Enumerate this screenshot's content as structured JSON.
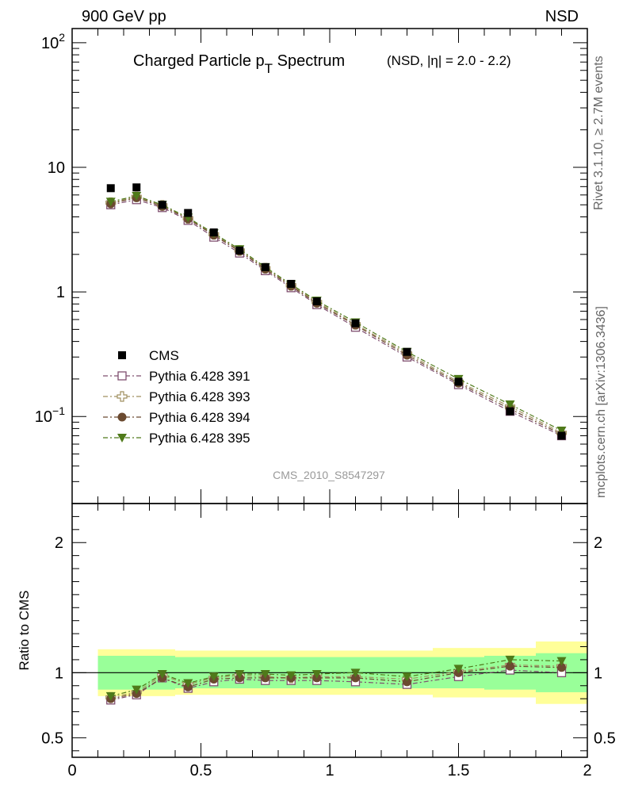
{
  "header": {
    "left": "900 GeV pp",
    "right": "NSD"
  },
  "side_labels": {
    "rivet": "Rivet 3.1.10, ≥ 2.7M events",
    "mcplots": "mcplots.cern.ch [arXiv:1306.3436]"
  },
  "chart_data": {
    "type": "scatter",
    "title": "Charged Particle p",
    "title_sub": "T",
    "title_word": " Spectrum",
    "title_extra": "(NSD, |η| = 2.0 - 2.2)",
    "analysis_label": "CMS_2010_S8547297",
    "xlim": [
      0,
      2
    ],
    "main_panel": {
      "yscale": "log",
      "ylim": [
        0.02,
        130
      ],
      "ytick_values": [
        0.1,
        1,
        10,
        100
      ],
      "ytick_labels": [
        {
          "base": "10",
          "exp": "−1"
        },
        {
          "base": "1",
          "exp": ""
        },
        {
          "base": "10",
          "exp": ""
        },
        {
          "base": "10",
          "exp": "2"
        }
      ]
    },
    "ratio_panel": {
      "ylabel": "Ratio to CMS",
      "ylim": [
        0.35,
        2.3
      ],
      "ytick_values": [
        0.5,
        1,
        2
      ],
      "ytick_labels": [
        "0.5",
        "1",
        "2"
      ]
    },
    "xtick_values": [
      0,
      0.5,
      1,
      1.5,
      2
    ],
    "xtick_labels": [
      "0",
      "0.5",
      "1",
      "1.5",
      "2"
    ],
    "bins": [
      [
        0.1,
        0.2
      ],
      [
        0.2,
        0.3
      ],
      [
        0.3,
        0.4
      ],
      [
        0.4,
        0.5
      ],
      [
        0.5,
        0.6
      ],
      [
        0.6,
        0.7
      ],
      [
        0.7,
        0.8
      ],
      [
        0.8,
        0.9
      ],
      [
        0.9,
        1.0
      ],
      [
        1.0,
        1.2
      ],
      [
        1.2,
        1.4
      ],
      [
        1.4,
        1.6
      ],
      [
        1.6,
        1.8
      ],
      [
        1.8,
        2.0
      ]
    ],
    "x": [
      0.15,
      0.25,
      0.35,
      0.45,
      0.55,
      0.65,
      0.75,
      0.85,
      0.95,
      1.1,
      1.3,
      1.5,
      1.7,
      1.9
    ],
    "data": {
      "name": "CMS",
      "y": [
        6.8,
        6.9,
        5.0,
        4.3,
        3.0,
        2.15,
        1.58,
        1.16,
        0.84,
        0.56,
        0.33,
        0.19,
        0.11,
        0.07
      ],
      "ratio_band_inner": [
        0.13,
        0.13,
        0.13,
        0.12,
        0.12,
        0.12,
        0.12,
        0.12,
        0.12,
        0.12,
        0.12,
        0.12,
        0.13,
        0.15
      ],
      "ratio_band_outer": [
        0.18,
        0.18,
        0.18,
        0.17,
        0.17,
        0.17,
        0.17,
        0.17,
        0.17,
        0.17,
        0.17,
        0.19,
        0.19,
        0.24
      ]
    },
    "series": [
      {
        "name": "Pythia 6.428 391",
        "color": "#7f4f6f",
        "marker": "open-square",
        "y": [
          5.0,
          5.5,
          4.75,
          3.75,
          2.75,
          2.05,
          1.48,
          1.08,
          0.79,
          0.52,
          0.3,
          0.18,
          0.11,
          0.07
        ],
        "ratio": [
          0.79,
          0.83,
          0.96,
          0.88,
          0.93,
          0.95,
          0.94,
          0.94,
          0.94,
          0.93,
          0.91,
          0.97,
          1.02,
          1.0
        ]
      },
      {
        "name": "Pythia 6.428 393",
        "color": "#a09060",
        "marker": "open-cross",
        "y": [
          5.2,
          5.8,
          4.95,
          3.9,
          2.9,
          2.15,
          1.55,
          1.13,
          0.83,
          0.55,
          0.32,
          0.19,
          0.12,
          0.074
        ],
        "ratio": [
          0.81,
          0.85,
          0.98,
          0.91,
          0.96,
          0.98,
          0.97,
          0.96,
          0.97,
          0.97,
          0.95,
          1.01,
          1.06,
          1.05
        ]
      },
      {
        "name": "Pythia 6.428 394",
        "color": "#6b4a30",
        "marker": "filled-circle",
        "y": [
          5.1,
          5.7,
          4.85,
          3.85,
          2.85,
          2.12,
          1.52,
          1.11,
          0.81,
          0.54,
          0.31,
          0.185,
          0.115,
          0.072
        ],
        "ratio": [
          0.8,
          0.84,
          0.96,
          0.89,
          0.95,
          0.96,
          0.96,
          0.96,
          0.96,
          0.96,
          0.93,
          1.0,
          1.05,
          1.04
        ]
      },
      {
        "name": "Pythia 6.428 395",
        "color": "#4f7a1a",
        "marker": "filled-triangle-down",
        "y": [
          5.3,
          5.9,
          5.0,
          3.95,
          2.95,
          2.2,
          1.58,
          1.15,
          0.85,
          0.57,
          0.33,
          0.2,
          0.125,
          0.077
        ],
        "ratio": [
          0.82,
          0.87,
          0.99,
          0.92,
          0.97,
          0.99,
          0.99,
          0.98,
          0.99,
          1.0,
          0.97,
          1.03,
          1.1,
          1.09
        ]
      }
    ],
    "legend_placement": "bottom-left"
  }
}
